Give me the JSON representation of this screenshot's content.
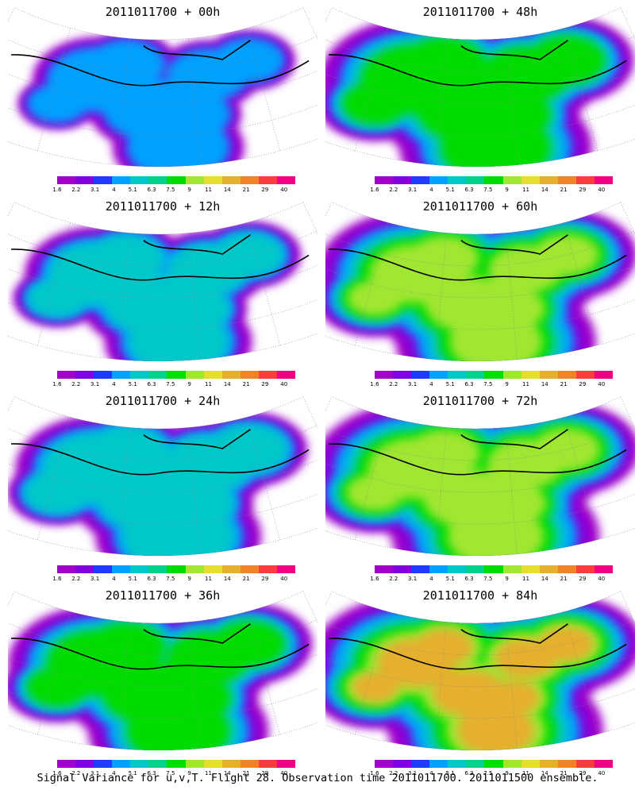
{
  "caption": "Signal Variance for u,v,T. Flight 28. Observation time 2011011700. 2011011500 ensemble.",
  "colorbar": {
    "labels": [
      "1.6",
      "2.2",
      "3.1",
      "4",
      "5.1",
      "6.3",
      "7.5",
      "9",
      "11",
      "14",
      "21",
      "29",
      "40"
    ],
    "colors": [
      "#a000c8",
      "#8200dc",
      "#1e3cff",
      "#00a0ff",
      "#00c8c8",
      "#00d28c",
      "#00dc00",
      "#a0e632",
      "#e6dc32",
      "#e6af2d",
      "#f08228",
      "#fa3c3c",
      "#f00082"
    ]
  },
  "panels": [
    {
      "title": "2011011700 + 00h",
      "coverage": 0.22,
      "intensity": 0.2
    },
    {
      "title": "2011011700 + 48h",
      "coverage": 0.72,
      "intensity": 0.55
    },
    {
      "title": "2011011700 + 12h",
      "coverage": 0.35,
      "intensity": 0.35
    },
    {
      "title": "2011011700 + 60h",
      "coverage": 0.78,
      "intensity": 0.62
    },
    {
      "title": "2011011700 + 24h",
      "coverage": 0.5,
      "intensity": 0.45
    },
    {
      "title": "2011011700 + 72h",
      "coverage": 0.84,
      "intensity": 0.7
    },
    {
      "title": "2011011700 + 36h",
      "coverage": 0.62,
      "intensity": 0.52
    },
    {
      "title": "2011011700 + 84h",
      "coverage": 0.9,
      "intensity": 0.76
    }
  ]
}
